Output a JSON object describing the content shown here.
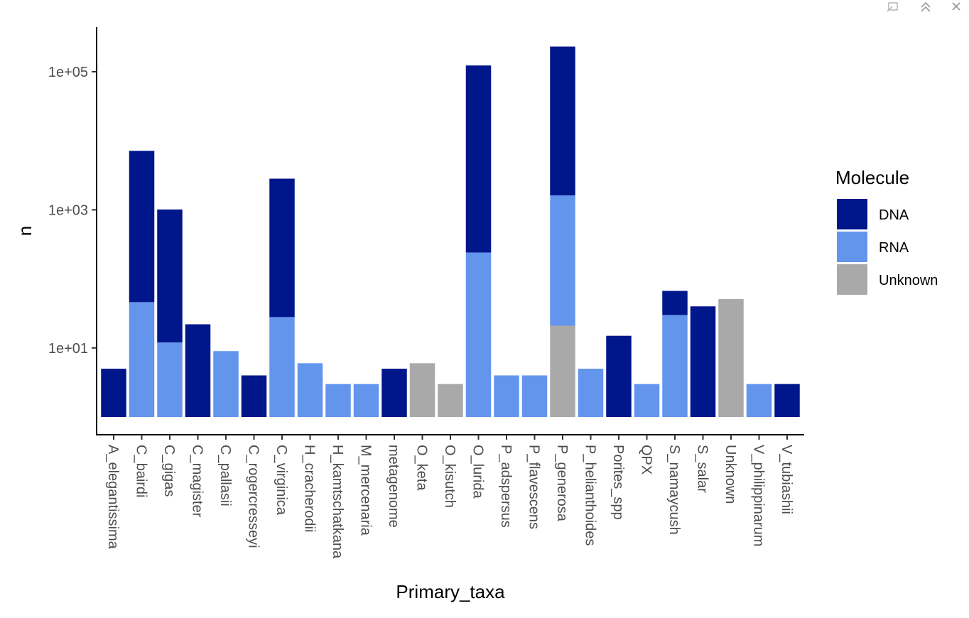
{
  "window": {
    "icons": [
      "popout-icon",
      "collapse-icon",
      "close-icon"
    ]
  },
  "chart_data": {
    "type": "bar",
    "stacked": true,
    "y_scale": "log10",
    "xlabel": "Primary_taxa",
    "ylabel": "n",
    "ylim": [
      1,
      220000
    ],
    "y_ticks": [
      10,
      1000,
      100000
    ],
    "y_tick_labels": [
      "1e+01",
      "1e+03",
      "1e+05"
    ],
    "grid": false,
    "legend": {
      "title": "Molecule",
      "placement": "right"
    },
    "categories": [
      "A_elegantissima",
      "C_bairdi",
      "C_gigas",
      "C_magister",
      "C_pallasii",
      "C_rogercresseyi",
      "C_virginica",
      "H_cracherodii",
      "H_kamtschatkana",
      "M_mercenaria",
      "metagenome",
      "O_keta",
      "O_kisutch",
      "O_lurida",
      "P_adspersus",
      "P_flavescens",
      "P_generosa",
      "P_helianthoides",
      "Porites_spp",
      "QPX",
      "S_namaycush",
      "S_salar",
      "Unknown",
      "V_philippinarum",
      "V_tubiashii"
    ],
    "series": [
      {
        "name": "Unknown",
        "color": "#A9A9A9",
        "values": [
          0,
          0,
          0,
          0,
          0,
          0,
          0,
          0,
          0,
          0,
          0,
          5,
          2,
          0,
          0,
          0,
          20,
          0,
          0,
          0,
          0,
          0,
          50,
          0,
          0
        ]
      },
      {
        "name": "RNA",
        "color": "#6495ED",
        "values": [
          0,
          45,
          11,
          0,
          8,
          0,
          27,
          5,
          2,
          2,
          0,
          0,
          0,
          240,
          3,
          3,
          1600,
          4,
          0,
          2,
          29,
          0,
          0,
          2,
          0
        ]
      },
      {
        "name": "DNA",
        "color": "#00168B",
        "values": [
          4,
          7100,
          1000,
          21,
          0,
          3,
          2800,
          0,
          0,
          0,
          4,
          0,
          0,
          123000,
          0,
          0,
          230000,
          0,
          14,
          0,
          37,
          39,
          0,
          0,
          2
        ]
      }
    ]
  }
}
